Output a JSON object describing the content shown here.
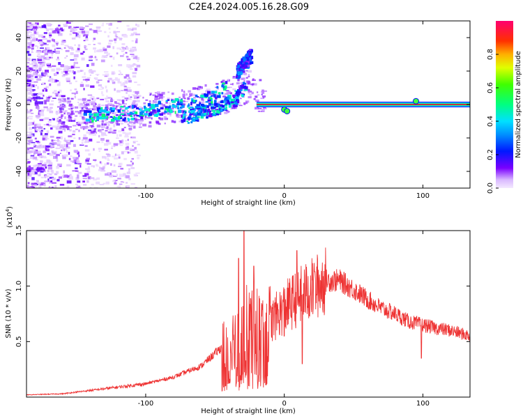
{
  "title": "C2E4.2024.005.16.28.G09",
  "chart_data": [
    {
      "type": "heatmap",
      "name": "spectrogram",
      "xlabel": "Height of straight line (km)",
      "ylabel": "Frequency (Hz)",
      "xlim": [
        -186,
        134
      ],
      "ylim": [
        -50,
        50
      ],
      "xticks": [
        -100,
        0,
        100
      ],
      "yticks": [
        -40,
        -20,
        0,
        20,
        40
      ],
      "colorbar": {
        "label": "Normalized spectral amplitude",
        "range": [
          0,
          1
        ],
        "ticks": [
          "0.0",
          "0.2",
          "0.4",
          "0.6",
          "0.8"
        ],
        "tick_values": [
          0.0,
          0.2,
          0.4,
          0.6,
          0.8
        ]
      },
      "features": [
        {
          "name": "carrier line",
          "x_range": [
            -20,
            134
          ],
          "frequency": 0,
          "amplitude": 0.9
        },
        {
          "name": "upper branch",
          "x": [
            -145,
            -120,
            -100,
            -80,
            -60,
            -50,
            -42
          ],
          "frequency": [
            -6,
            -5,
            -3,
            0,
            3,
            7,
            12
          ],
          "amplitude": 0.45
        },
        {
          "name": "lower branch",
          "x": [
            -75,
            -60,
            -45,
            -35,
            -28
          ],
          "frequency": [
            -8,
            -4,
            0,
            5,
            12
          ],
          "amplitude": 0.4
        },
        {
          "name": "upper spur",
          "x": [
            -35,
            -25
          ],
          "frequency": [
            20,
            30
          ],
          "amplitude": 0.3
        }
      ]
    },
    {
      "type": "line",
      "name": "snr",
      "xlabel": "Height of straight line (km)",
      "ylabel": "SNR (10 * v/v)",
      "scale_note": "(x10",
      "scale_exp": "4",
      "scale_close": ")",
      "xlim": [
        -186,
        134
      ],
      "ylim": [
        0,
        1.5
      ],
      "xticks": [
        -100,
        0,
        100
      ],
      "yticks": [
        "0.5",
        "1.0",
        "1.5"
      ],
      "ytick_values": [
        0.5,
        1.0,
        1.5
      ],
      "series": [
        {
          "name": "SNR",
          "color": "#ee3333",
          "x": [
            -186,
            -160,
            -140,
            -120,
            -100,
            -80,
            -60,
            -45,
            -35,
            -25,
            -15,
            0,
            10,
            20,
            30,
            40,
            50,
            60,
            70,
            80,
            90,
            100,
            110,
            120,
            134
          ],
          "y": [
            0.02,
            0.03,
            0.06,
            0.09,
            0.12,
            0.18,
            0.28,
            0.45,
            0.55,
            0.7,
            0.62,
            0.8,
            0.9,
            0.97,
            1.05,
            1.05,
            0.97,
            0.88,
            0.8,
            0.75,
            0.68,
            0.65,
            0.62,
            0.6,
            0.55
          ],
          "spikes": [
            [
              -29,
              1.5
            ],
            [
              -33,
              1.25
            ],
            [
              -22,
              1.18
            ],
            [
              9,
              1.32
            ],
            [
              22,
              1.13
            ],
            [
              0,
              0.55
            ],
            [
              13,
              0.3
            ],
            [
              99,
              0.35
            ]
          ]
        }
      ]
    }
  ],
  "colors": {
    "line": "#ee3333",
    "carrier_core": "#e8003c",
    "carrier_halo": "#00c8ff"
  }
}
